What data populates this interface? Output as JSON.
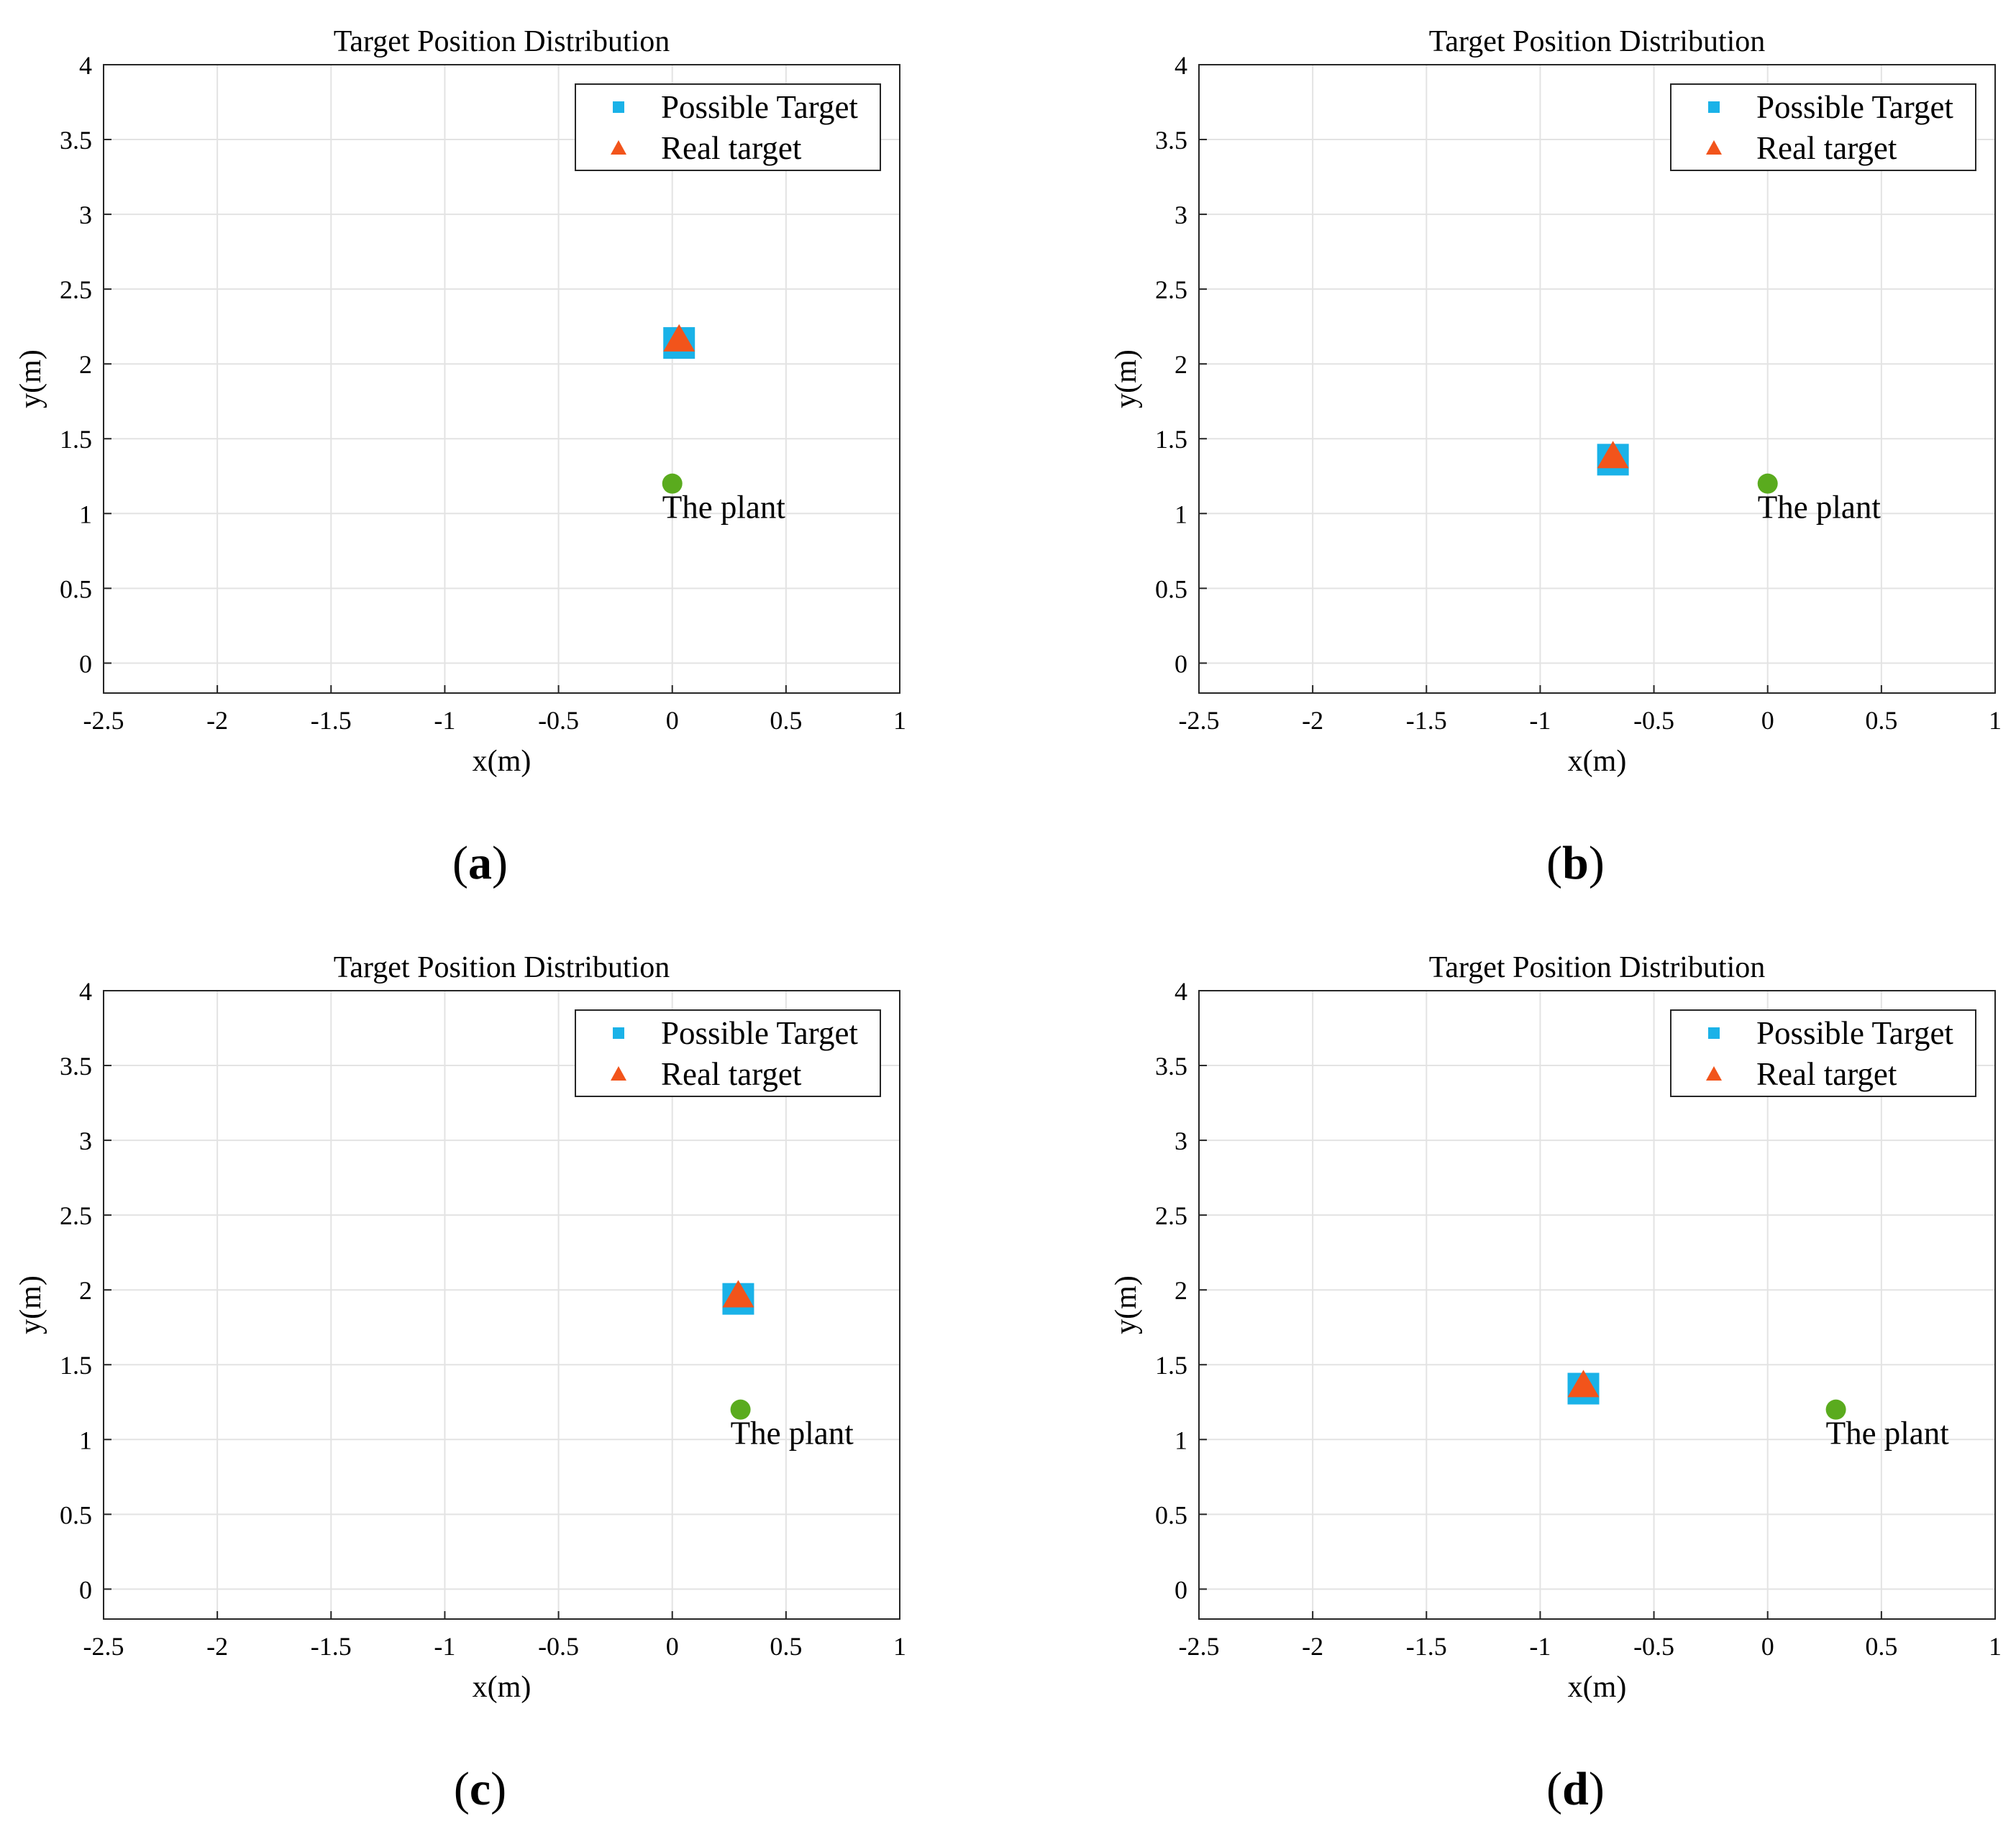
{
  "chart_data": [
    {
      "panel": "(a)",
      "panel_letter": "a",
      "type": "scatter",
      "title": "Target Position Distribution",
      "xlabel": "x(m)",
      "ylabel": "y(m)",
      "xlim": [
        -2.5,
        1
      ],
      "ylim": [
        -0.2,
        4
      ],
      "xticks": [
        "-2.5",
        "-2",
        "-1.5",
        "-1",
        "-0.5",
        "0",
        "0.5",
        "1"
      ],
      "yticks": [
        "0",
        "0.5",
        "1",
        "1.5",
        "2",
        "2.5",
        "3",
        "3.5",
        "4"
      ],
      "grid": true,
      "legend_position": "top-right",
      "series": [
        {
          "name": "Possible Target",
          "marker": "square",
          "color": "#1ab2e8",
          "points": [
            {
              "x": 0.03,
              "y": 2.14
            }
          ]
        },
        {
          "name": "Real target",
          "marker": "triangle",
          "color": "#f2541b",
          "points": [
            {
              "x": 0.03,
              "y": 2.16
            }
          ]
        }
      ],
      "annotations": [
        {
          "label": "The plant",
          "x": 0.0,
          "y": 1.2,
          "marker": "circle",
          "color": "#5aab1e"
        }
      ]
    },
    {
      "panel": "(b)",
      "panel_letter": "b",
      "type": "scatter",
      "title": "Target Position Distribution",
      "xlabel": "x(m)",
      "ylabel": "y(m)",
      "xlim": [
        -2.5,
        1
      ],
      "ylim": [
        -0.2,
        4
      ],
      "xticks": [
        "-2.5",
        "-2",
        "-1.5",
        "-1",
        "-0.5",
        "0",
        "0.5",
        "1"
      ],
      "yticks": [
        "0",
        "0.5",
        "1",
        "1.5",
        "2",
        "2.5",
        "3",
        "3.5",
        "4"
      ],
      "grid": true,
      "legend_position": "top-right",
      "series": [
        {
          "name": "Possible Target",
          "marker": "square",
          "color": "#1ab2e8",
          "points": [
            {
              "x": -0.68,
              "y": 1.36
            }
          ]
        },
        {
          "name": "Real target",
          "marker": "triangle",
          "color": "#f2541b",
          "points": [
            {
              "x": -0.68,
              "y": 1.38
            }
          ]
        }
      ],
      "annotations": [
        {
          "label": "The plant",
          "x": 0.0,
          "y": 1.2,
          "marker": "circle",
          "color": "#5aab1e"
        }
      ]
    },
    {
      "panel": "(c)",
      "panel_letter": "c",
      "type": "scatter",
      "title": "Target Position Distribution",
      "xlabel": "x(m)",
      "ylabel": "y(m)",
      "xlim": [
        -2.5,
        1
      ],
      "ylim": [
        -0.2,
        4
      ],
      "xticks": [
        "-2.5",
        "-2",
        "-1.5",
        "-1",
        "-0.5",
        "0",
        "0.5",
        "1"
      ],
      "yticks": [
        "0",
        "0.5",
        "1",
        "1.5",
        "2",
        "2.5",
        "3",
        "3.5",
        "4"
      ],
      "grid": true,
      "legend_position": "top-right",
      "series": [
        {
          "name": "Possible Target",
          "marker": "square",
          "color": "#1ab2e8",
          "points": [
            {
              "x": 0.29,
              "y": 1.94
            }
          ]
        },
        {
          "name": "Real target",
          "marker": "triangle",
          "color": "#f2541b",
          "points": [
            {
              "x": 0.29,
              "y": 1.96
            }
          ]
        }
      ],
      "annotations": [
        {
          "label": "The plant",
          "x": 0.3,
          "y": 1.2,
          "marker": "circle",
          "color": "#5aab1e"
        }
      ]
    },
    {
      "panel": "(d)",
      "panel_letter": "d",
      "type": "scatter",
      "title": "Target Position Distribution",
      "xlabel": "x(m)",
      "ylabel": "y(m)",
      "xlim": [
        -2.5,
        1
      ],
      "ylim": [
        -0.2,
        4
      ],
      "xticks": [
        "-2.5",
        "-2",
        "-1.5",
        "-1",
        "-0.5",
        "0",
        "0.5",
        "1"
      ],
      "yticks": [
        "0",
        "0.5",
        "1",
        "1.5",
        "2",
        "2.5",
        "3",
        "3.5",
        "4"
      ],
      "grid": true,
      "legend_position": "top-right",
      "series": [
        {
          "name": "Possible Target",
          "marker": "square",
          "color": "#1ab2e8",
          "points": [
            {
              "x": -0.81,
              "y": 1.34
            }
          ]
        },
        {
          "name": "Real target",
          "marker": "triangle",
          "color": "#f2541b",
          "points": [
            {
              "x": -0.81,
              "y": 1.36
            }
          ]
        }
      ],
      "annotations": [
        {
          "label": "The plant",
          "x": 0.3,
          "y": 1.2,
          "marker": "circle",
          "color": "#5aab1e"
        }
      ]
    }
  ]
}
